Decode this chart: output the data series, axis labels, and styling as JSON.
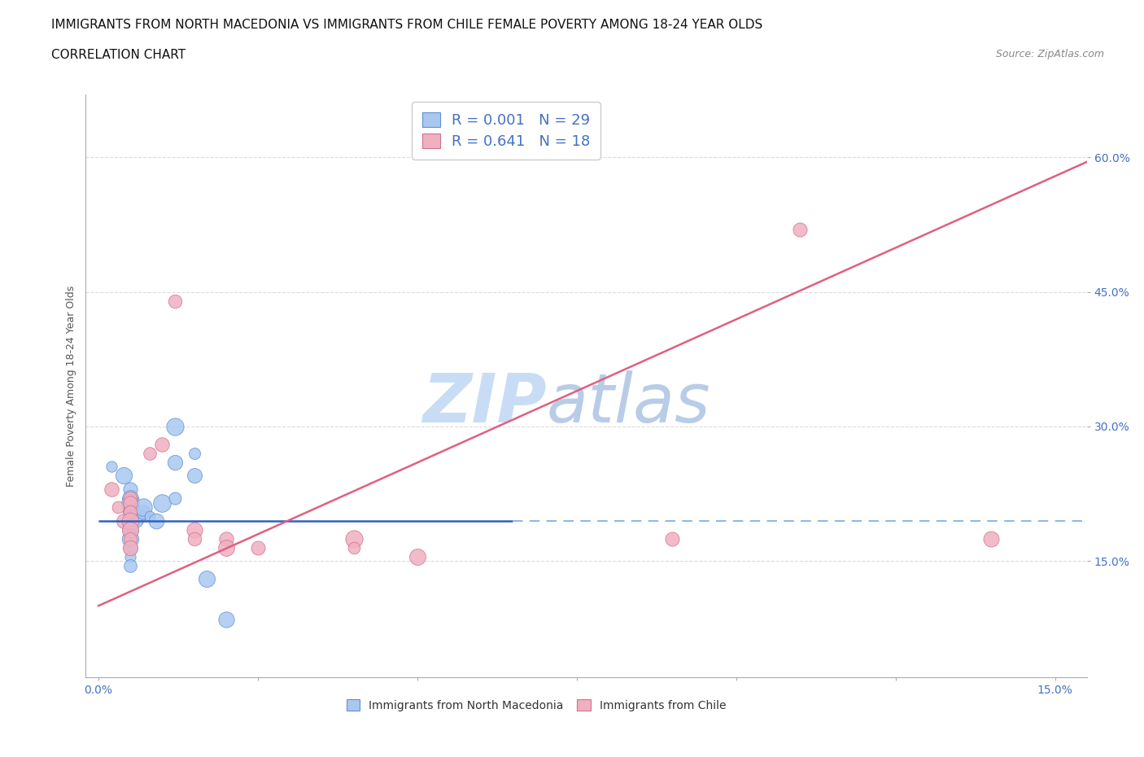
{
  "title_line1": "IMMIGRANTS FROM NORTH MACEDONIA VS IMMIGRANTS FROM CHILE FEMALE POVERTY AMONG 18-24 YEAR OLDS",
  "title_line2": "CORRELATION CHART",
  "source_text": "Source: ZipAtlas.com",
  "ylabel": "Female Poverty Among 18-24 Year Olds",
  "xlim": [
    -0.002,
    0.155
  ],
  "ylim": [
    0.02,
    0.67
  ],
  "xticks": [
    0.0,
    0.025,
    0.05,
    0.075,
    0.1,
    0.125,
    0.15
  ],
  "yticks": [
    0.15,
    0.3,
    0.45,
    0.6
  ],
  "ytick_labels": [
    "15.0%",
    "30.0%",
    "45.0%",
    "60.0%"
  ],
  "xtick_labels": [
    "0.0%",
    "",
    "",
    "",
    "",
    "",
    "15.0%"
  ],
  "color_blue": "#a8c8f0",
  "color_pink": "#f0b0c0",
  "line_blue_solid": "#3060c0",
  "line_blue_dashed": "#90b8e8",
  "line_pink": "#e06080",
  "watermark_zip": "ZIP",
  "watermark_atlas": "atlas",
  "watermark_color_zip": "#c8ddf0",
  "watermark_color_atlas": "#b0cce8",
  "background_color": "#ffffff",
  "grid_color": "#cccccc",
  "title_fontsize": 11,
  "label_fontsize": 9,
  "tick_fontsize": 10,
  "legend_fontsize": 13,
  "source_fontsize": 9,
  "blue_dots": [
    [
      0.002,
      0.255
    ],
    [
      0.004,
      0.245
    ],
    [
      0.005,
      0.23
    ],
    [
      0.005,
      0.22
    ],
    [
      0.005,
      0.215
    ],
    [
      0.005,
      0.21
    ],
    [
      0.005,
      0.205
    ],
    [
      0.005,
      0.2
    ],
    [
      0.005,
      0.195
    ],
    [
      0.005,
      0.19
    ],
    [
      0.005,
      0.185
    ],
    [
      0.005,
      0.175
    ],
    [
      0.005,
      0.165
    ],
    [
      0.005,
      0.155
    ],
    [
      0.005,
      0.145
    ],
    [
      0.006,
      0.2
    ],
    [
      0.006,
      0.195
    ],
    [
      0.007,
      0.205
    ],
    [
      0.007,
      0.21
    ],
    [
      0.008,
      0.2
    ],
    [
      0.009,
      0.195
    ],
    [
      0.01,
      0.215
    ],
    [
      0.012,
      0.22
    ],
    [
      0.012,
      0.26
    ],
    [
      0.012,
      0.3
    ],
    [
      0.015,
      0.27
    ],
    [
      0.015,
      0.245
    ],
    [
      0.017,
      0.13
    ],
    [
      0.02,
      0.085
    ]
  ],
  "pink_dots": [
    [
      0.002,
      0.23
    ],
    [
      0.003,
      0.21
    ],
    [
      0.004,
      0.195
    ],
    [
      0.005,
      0.22
    ],
    [
      0.005,
      0.215
    ],
    [
      0.005,
      0.205
    ],
    [
      0.005,
      0.195
    ],
    [
      0.005,
      0.185
    ],
    [
      0.005,
      0.175
    ],
    [
      0.005,
      0.165
    ],
    [
      0.008,
      0.27
    ],
    [
      0.01,
      0.28
    ],
    [
      0.012,
      0.44
    ],
    [
      0.015,
      0.185
    ],
    [
      0.015,
      0.175
    ],
    [
      0.02,
      0.175
    ],
    [
      0.02,
      0.165
    ],
    [
      0.025,
      0.165
    ],
    [
      0.04,
      0.175
    ],
    [
      0.04,
      0.165
    ],
    [
      0.05,
      0.155
    ],
    [
      0.09,
      0.175
    ],
    [
      0.11,
      0.52
    ],
    [
      0.14,
      0.175
    ]
  ],
  "blue_line_x_end_solid": 0.065,
  "pink_line_y_at_0": 0.1,
  "pink_line_y_at_15": 0.595
}
